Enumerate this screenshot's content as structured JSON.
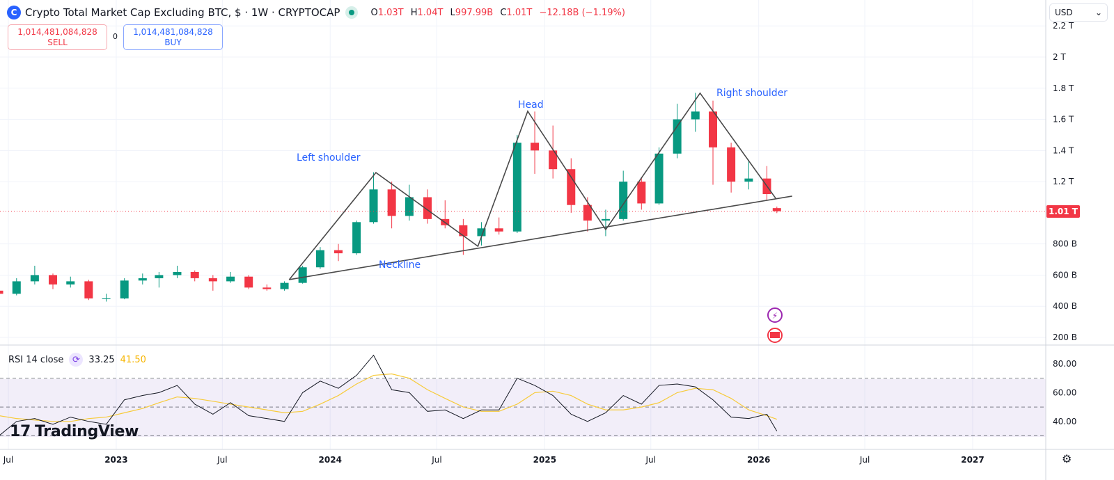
{
  "header": {
    "title": "Crypto Total Market Cap Excluding BTC, $ · 1W · CRYPTOCAP",
    "logo_icon": "crypto-cap-logo-icon",
    "market_status_icon": "market-open-dot-icon",
    "ohlc": {
      "o_label": "O",
      "o": "1.03T",
      "h_label": "H",
      "h": "1.04T",
      "l_label": "L",
      "l": "997.99B",
      "c_label": "C",
      "c": "1.01T",
      "change": "−12.18B (−1.19%)"
    }
  },
  "trade": {
    "sell_price": "1,014,481,084,828",
    "sell_label": "SELL",
    "spread": "0",
    "buy_price": "1,014,481,084,828",
    "buy_label": "BUY"
  },
  "currency_selector": "USD",
  "colors": {
    "up": "#089981",
    "down": "#f23645",
    "annotation": "#2962ff",
    "pattern_line": "#4a4a4a",
    "rsi": "#131722",
    "rsi_ma": "#f7cb3a",
    "rsi_band": "#7e57c2"
  },
  "annotations": {
    "left_shoulder": "Left shoulder",
    "head": "Head",
    "right_shoulder": "Right shoulder",
    "neckline": "Neckline"
  },
  "rsi_header": {
    "label": "RSI 14 close",
    "value": "33.25",
    "ma_value": "41.50"
  },
  "branding": "TradingView",
  "chart_data": [
    {
      "type": "candlestick",
      "title": "Crypto Total Market Cap Excluding BTC",
      "unit": "USD (billions)",
      "current_price_label": "1.01 T",
      "current_price": 1010,
      "y_ticks": [
        {
          "v": 2200,
          "label": "2.2 T"
        },
        {
          "v": 2000,
          "label": "2 T"
        },
        {
          "v": 1800,
          "label": "1.8 T"
        },
        {
          "v": 1600,
          "label": "1.6 T"
        },
        {
          "v": 1400,
          "label": "1.4 T"
        },
        {
          "v": 1200,
          "label": "1.2 T"
        },
        {
          "v": 800,
          "label": "800 B"
        },
        {
          "v": 600,
          "label": "600 B"
        },
        {
          "v": 400,
          "label": "400 B"
        },
        {
          "v": 200,
          "label": "200 B"
        }
      ],
      "x_ticks": [
        {
          "d": "2022-07-01",
          "label": "Jul"
        },
        {
          "d": "2023-01-01",
          "label": "2023"
        },
        {
          "d": "2023-07-01",
          "label": "Jul"
        },
        {
          "d": "2024-01-01",
          "label": "2024"
        },
        {
          "d": "2024-07-01",
          "label": "Jul"
        },
        {
          "d": "2025-01-01",
          "label": "2025"
        },
        {
          "d": "2025-07-01",
          "label": "Jul"
        },
        {
          "d": "2026-01-01",
          "label": "2026"
        },
        {
          "d": "2026-07-01",
          "label": "Jul"
        },
        {
          "d": "2027-01-01",
          "label": "2027"
        }
      ],
      "grid": true,
      "ohlc": [
        [
          "2022-06-15",
          500,
          520,
          440,
          480
        ],
        [
          "2022-07-15",
          480,
          580,
          470,
          560
        ],
        [
          "2022-08-15",
          560,
          660,
          540,
          600
        ],
        [
          "2022-09-15",
          600,
          610,
          510,
          540
        ],
        [
          "2022-10-15",
          540,
          590,
          520,
          560
        ],
        [
          "2022-11-15",
          560,
          570,
          440,
          450
        ],
        [
          "2022-12-15",
          450,
          480,
          430,
          450
        ],
        [
          "2023-01-15",
          450,
          580,
          445,
          565
        ],
        [
          "2023-02-15",
          565,
          610,
          540,
          580
        ],
        [
          "2023-03-15",
          580,
          620,
          520,
          600
        ],
        [
          "2023-04-15",
          600,
          660,
          580,
          620
        ],
        [
          "2023-05-15",
          620,
          630,
          560,
          580
        ],
        [
          "2023-06-15",
          580,
          600,
          500,
          560
        ],
        [
          "2023-07-15",
          560,
          620,
          550,
          590
        ],
        [
          "2023-08-15",
          590,
          600,
          510,
          520
        ],
        [
          "2023-09-15",
          520,
          540,
          500,
          510
        ],
        [
          "2023-10-15",
          510,
          560,
          500,
          550
        ],
        [
          "2023-11-15",
          550,
          660,
          545,
          650
        ],
        [
          "2023-12-15",
          650,
          780,
          640,
          760
        ],
        [
          "2024-01-15",
          760,
          800,
          690,
          740
        ],
        [
          "2024-02-15",
          740,
          950,
          730,
          940
        ],
        [
          "2024-03-15",
          940,
          1260,
          930,
          1150
        ],
        [
          "2024-04-15",
          1150,
          1200,
          900,
          980
        ],
        [
          "2024-05-15",
          980,
          1180,
          950,
          1100
        ],
        [
          "2024-06-15",
          1100,
          1150,
          930,
          960
        ],
        [
          "2024-07-15",
          960,
          1080,
          900,
          920
        ],
        [
          "2024-08-15",
          920,
          960,
          730,
          850
        ],
        [
          "2024-09-15",
          850,
          940,
          790,
          900
        ],
        [
          "2024-10-15",
          900,
          970,
          860,
          880
        ],
        [
          "2024-11-15",
          880,
          1500,
          870,
          1450
        ],
        [
          "2024-12-15",
          1450,
          1650,
          1250,
          1400
        ],
        [
          "2025-01-15",
          1400,
          1560,
          1220,
          1280
        ],
        [
          "2025-02-15",
          1280,
          1350,
          1000,
          1050
        ],
        [
          "2025-03-15",
          1050,
          1100,
          880,
          950
        ],
        [
          "2025-04-15",
          950,
          1020,
          850,
          960
        ],
        [
          "2025-05-15",
          960,
          1270,
          950,
          1200
        ],
        [
          "2025-06-15",
          1200,
          1230,
          1020,
          1060
        ],
        [
          "2025-07-15",
          1060,
          1420,
          1050,
          1380
        ],
        [
          "2025-08-15",
          1380,
          1700,
          1350,
          1600
        ],
        [
          "2025-09-15",
          1600,
          1770,
          1520,
          1650
        ],
        [
          "2025-10-15",
          1650,
          1720,
          1180,
          1420
        ],
        [
          "2025-11-15",
          1420,
          1450,
          1130,
          1200
        ],
        [
          "2025-12-15",
          1200,
          1340,
          1150,
          1220
        ],
        [
          "2026-01-15",
          1220,
          1300,
          1080,
          1120
        ],
        [
          "2026-02-01",
          1030,
          1040,
          998,
          1010
        ]
      ],
      "pattern_line": [
        [
          "2023-10-23",
          570
        ],
        [
          "2024-03-19",
          1258
        ],
        [
          "2024-09-09",
          785
        ],
        [
          "2024-12-03",
          1652
        ],
        [
          "2025-04-15",
          892
        ],
        [
          "2025-09-23",
          1768
        ],
        [
          "2026-01-30",
          1093
        ]
      ],
      "neckline": [
        [
          "2023-10-23",
          571
        ],
        [
          "2026-02-27",
          1107
        ]
      ]
    },
    {
      "type": "line",
      "title": "RSI 14 close",
      "ylim": [
        20,
        90
      ],
      "y_ticks": [
        {
          "v": 80,
          "label": "80.00"
        },
        {
          "v": 60,
          "label": "60.00"
        },
        {
          "v": 40,
          "label": "40.00"
        }
      ],
      "bands": {
        "upper": 70,
        "middle": 50,
        "lower": 30
      },
      "dates": [
        "2022-06-15",
        "2022-07-15",
        "2022-08-15",
        "2022-09-15",
        "2022-10-15",
        "2022-11-15",
        "2022-12-15",
        "2023-01-15",
        "2023-02-15",
        "2023-03-15",
        "2023-04-15",
        "2023-05-15",
        "2023-06-15",
        "2023-07-15",
        "2023-08-15",
        "2023-09-15",
        "2023-10-15",
        "2023-11-15",
        "2023-12-15",
        "2024-01-15",
        "2024-02-15",
        "2024-03-15",
        "2024-04-15",
        "2024-05-15",
        "2024-06-15",
        "2024-07-15",
        "2024-08-15",
        "2024-09-15",
        "2024-10-15",
        "2024-11-15",
        "2024-12-15",
        "2025-01-15",
        "2025-02-15",
        "2025-03-15",
        "2025-04-15",
        "2025-05-15",
        "2025-06-15",
        "2025-07-15",
        "2025-08-15",
        "2025-09-15",
        "2025-10-15",
        "2025-11-15",
        "2025-12-15",
        "2026-01-15",
        "2026-02-01"
      ],
      "series": [
        {
          "name": "RSI",
          "values": [
            30,
            40,
            42,
            38,
            43,
            40,
            38,
            55,
            58,
            60,
            65,
            52,
            45,
            53,
            44,
            42,
            40,
            60,
            68,
            63,
            72,
            86,
            62,
            60,
            47,
            48,
            42,
            48,
            48,
            70,
            65,
            58,
            45,
            40,
            46,
            58,
            52,
            65,
            66,
            64,
            55,
            43,
            42,
            45,
            33.25
          ]
        },
        {
          "name": "RSI MA",
          "values": [
            44,
            42,
            41,
            40,
            40,
            42,
            43,
            46,
            49,
            53,
            57,
            56,
            54,
            52,
            50,
            48,
            46,
            47,
            52,
            58,
            66,
            72,
            73,
            70,
            62,
            56,
            50,
            47,
            47,
            52,
            60,
            61,
            58,
            52,
            48,
            48,
            50,
            53,
            60,
            63,
            62,
            56,
            48,
            44,
            41.5
          ]
        }
      ]
    }
  ]
}
